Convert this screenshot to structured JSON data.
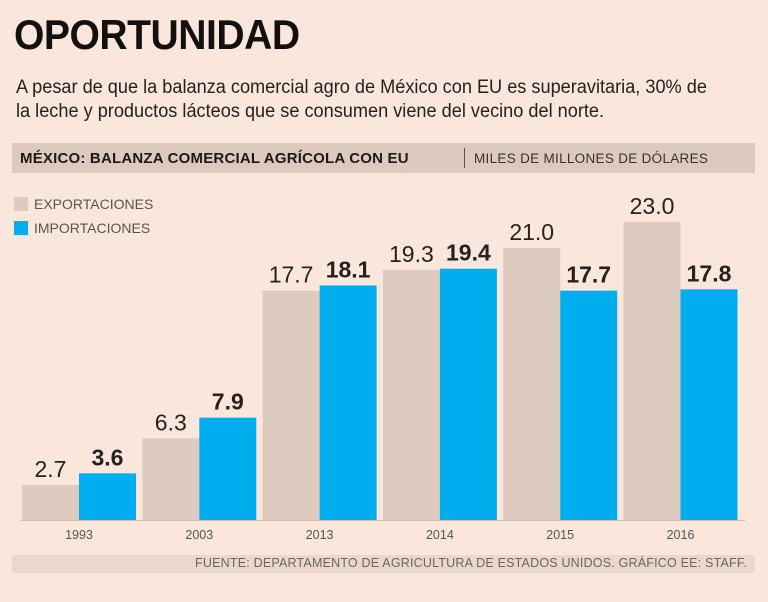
{
  "title": "OPORTUNIDAD",
  "subtitle": "A pesar de que la balanza comercial agro de México con EU es superavitaria, 30% de la leche y productos lácteos que se consumen viene del vecino del norte.",
  "header": {
    "main": "MÉXICO: BALANZA COMERCIAL AGRÍCOLA CON EU",
    "unit": "MILES DE MILLONES DE DÓLARES"
  },
  "footer": "FUENTE: DEPARTAMENTO DE AGRICULTURA DE ESTADOS UNIDOS.  GRÁFICO EE: STAFF.",
  "colors": {
    "background": "#fbe6db",
    "exportaciones": "#dccbbe",
    "importaciones": "#00aeef"
  },
  "chart_data": {
    "type": "bar",
    "title": "MÉXICO: BALANZA COMERCIAL AGRÍCOLA CON EU",
    "ylabel": "MILES DE MILLONES DE DÓLARES",
    "xlabel": "",
    "categories": [
      "1993",
      "2003",
      "2013",
      "2014",
      "2015",
      "2016"
    ],
    "series": [
      {
        "name": "EXPORTACIONES",
        "values": [
          2.7,
          6.3,
          17.7,
          19.3,
          21.0,
          23.0
        ],
        "labels": [
          "2.7",
          "6.3",
          "17.7",
          "19.3",
          "21.0",
          "23.0"
        ]
      },
      {
        "name": "IMPORTACIONES",
        "values": [
          3.6,
          7.9,
          18.1,
          19.4,
          17.7,
          17.8
        ],
        "labels": [
          "3.6",
          "7.9",
          "18.1",
          "19.4",
          "17.7",
          "17.8"
        ]
      }
    ],
    "ylim": [
      0,
      23
    ],
    "grid": false,
    "legend": "top-left"
  }
}
